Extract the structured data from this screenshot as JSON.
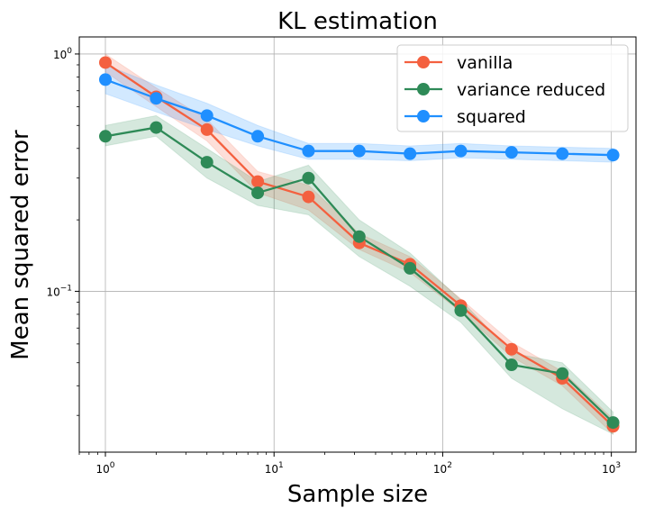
{
  "chart_data": {
    "type": "line",
    "title": "KL estimation",
    "xlabel": "Sample size",
    "ylabel": "Mean squared error",
    "xscale": "log",
    "yscale": "log",
    "xlim": [
      0.7,
      1400
    ],
    "ylim": [
      0.021,
      1.18
    ],
    "grid": true,
    "legend_position": "top-right",
    "x": [
      1,
      2,
      4,
      8,
      16,
      32,
      64,
      128,
      256,
      512,
      1024
    ],
    "x_ticks": [
      {
        "value": 1,
        "base": "10",
        "exp": "0"
      },
      {
        "value": 10,
        "base": "10",
        "exp": "1"
      },
      {
        "value": 100,
        "base": "10",
        "exp": "2"
      },
      {
        "value": 1000,
        "base": "10",
        "exp": "3"
      }
    ],
    "y_ticks": [
      {
        "value": 0.1,
        "base": "10",
        "exp": "−1"
      },
      {
        "value": 1,
        "base": "10",
        "exp": "0"
      }
    ],
    "series": [
      {
        "name": "vanilla",
        "color": "#f4603f",
        "values": [
          0.92,
          0.66,
          0.48,
          0.29,
          0.25,
          0.16,
          0.13,
          0.087,
          0.057,
          0.043,
          0.027
        ],
        "lower": [
          0.84,
          0.6,
          0.43,
          0.26,
          0.22,
          0.15,
          0.12,
          0.082,
          0.053,
          0.04,
          0.025
        ],
        "upper": [
          1.0,
          0.72,
          0.53,
          0.32,
          0.28,
          0.175,
          0.14,
          0.093,
          0.061,
          0.046,
          0.029
        ]
      },
      {
        "name": "variance reduced",
        "color": "#2e8a57",
        "values": [
          0.45,
          0.49,
          0.35,
          0.26,
          0.3,
          0.17,
          0.125,
          0.083,
          0.049,
          0.045,
          0.028
        ],
        "lower": [
          0.41,
          0.45,
          0.3,
          0.23,
          0.21,
          0.14,
          0.105,
          0.074,
          0.043,
          0.032,
          0.025
        ],
        "upper": [
          0.5,
          0.55,
          0.4,
          0.29,
          0.34,
          0.2,
          0.145,
          0.092,
          0.055,
          0.05,
          0.031
        ]
      },
      {
        "name": "squared",
        "color": "#1f8fff",
        "values": [
          0.78,
          0.65,
          0.55,
          0.45,
          0.39,
          0.39,
          0.38,
          0.39,
          0.385,
          0.38,
          0.375
        ],
        "lower": [
          0.68,
          0.57,
          0.48,
          0.41,
          0.36,
          0.36,
          0.355,
          0.365,
          0.36,
          0.355,
          0.35
        ],
        "upper": [
          0.9,
          0.74,
          0.62,
          0.5,
          0.42,
          0.42,
          0.41,
          0.42,
          0.41,
          0.405,
          0.4
        ]
      }
    ]
  }
}
